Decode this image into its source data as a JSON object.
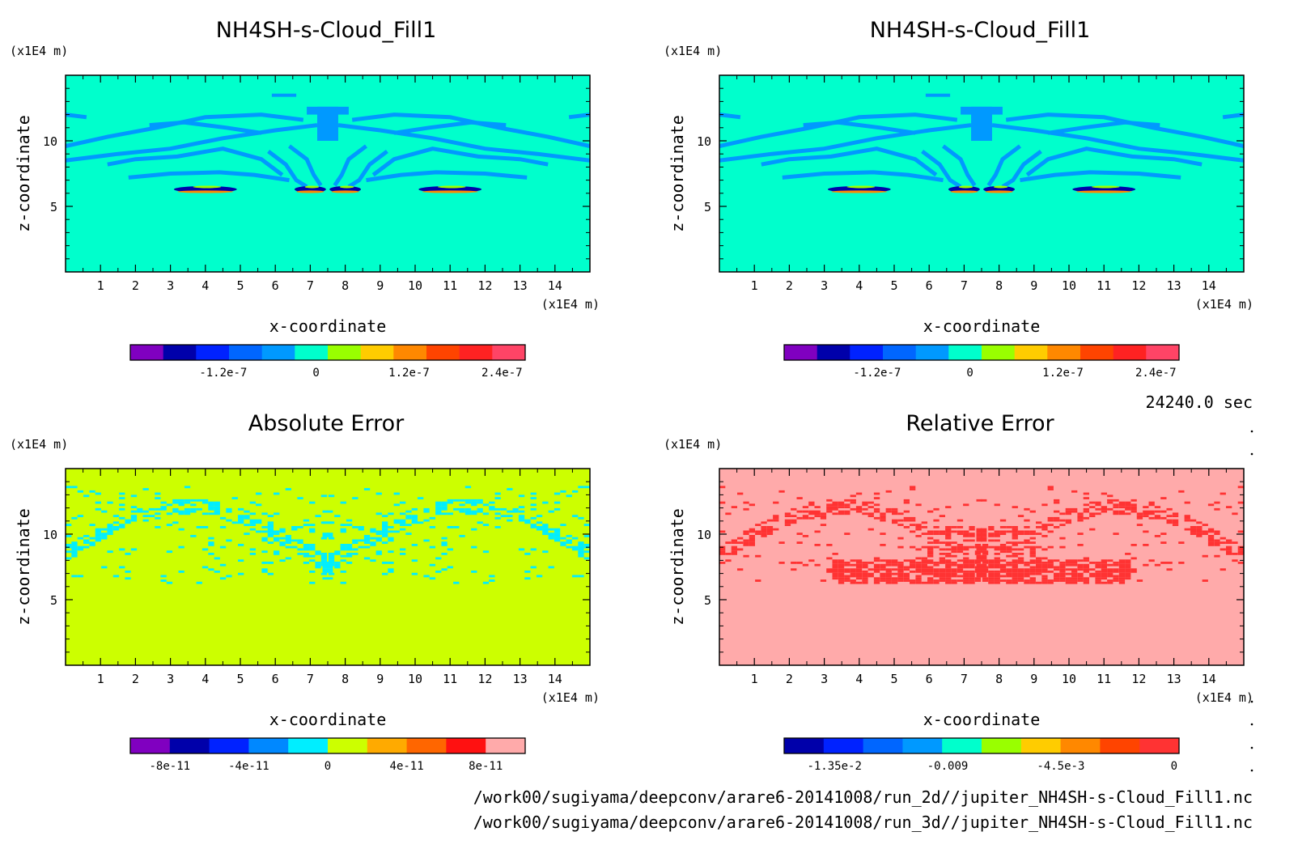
{
  "time_label": "24240.0 sec",
  "file_paths": [
    "/work00/sugiyama/deepconv/arare6-20141008/run_2d//jupiter_NH4SH-s-Cloud_Fill1.nc",
    "/work00/sugiyama/deepconv/arare6-20141008/run_3d//jupiter_NH4SH-s-Cloud_Fill1.nc"
  ],
  "chart_data": [
    {
      "type": "heatmap",
      "title": "NH4SH-s-Cloud_Fill1",
      "xlabel": "x-coordinate",
      "ylabel": "z-coordinate",
      "x_unit": "(x1E4 m)",
      "y_unit": "(x1E4 m)",
      "xlim": [
        0,
        15
      ],
      "ylim": [
        0,
        15
      ],
      "x_ticks": [
        1,
        2,
        3,
        4,
        5,
        6,
        7,
        8,
        9,
        10,
        11,
        12,
        13,
        14
      ],
      "y_ticks": [
        5,
        10
      ],
      "background_color": "#00ffcc",
      "pattern_color": "#0099ff",
      "colorbar": {
        "colors": [
          "#8000c0",
          "#0000aa",
          "#0022ff",
          "#0066ff",
          "#0099ff",
          "#00ffcc",
          "#99ff00",
          "#ffcc00",
          "#ff8800",
          "#ff4400",
          "#ff2222",
          "#ff4466"
        ],
        "labels": [
          "-1.2e-7",
          "0",
          "1.2e-7",
          "2.4e-7"
        ],
        "label_positions": [
          -1.2e-07,
          0,
          1.2e-07,
          2.4e-07
        ],
        "range": [
          -2.4e-07,
          2.7e-07
        ]
      }
    },
    {
      "type": "heatmap",
      "title": "NH4SH-s-Cloud_Fill1",
      "xlabel": "x-coordinate",
      "ylabel": "z-coordinate",
      "x_unit": "(x1E4 m)",
      "y_unit": "(x1E4 m)",
      "xlim": [
        0,
        15
      ],
      "ylim": [
        0,
        15
      ],
      "x_ticks": [
        1,
        2,
        3,
        4,
        5,
        6,
        7,
        8,
        9,
        10,
        11,
        12,
        13,
        14
      ],
      "y_ticks": [
        5,
        10
      ],
      "background_color": "#00ffcc",
      "pattern_color": "#0099ff",
      "colorbar": {
        "colors": [
          "#8000c0",
          "#0000aa",
          "#0022ff",
          "#0066ff",
          "#0099ff",
          "#00ffcc",
          "#99ff00",
          "#ffcc00",
          "#ff8800",
          "#ff4400",
          "#ff2222",
          "#ff4466"
        ],
        "labels": [
          "-1.2e-7",
          "0",
          "1.2e-7",
          "2.4e-7"
        ],
        "label_positions": [
          -1.2e-07,
          0,
          1.2e-07,
          2.4e-07
        ],
        "range": [
          -2.4e-07,
          2.7e-07
        ]
      }
    },
    {
      "type": "heatmap",
      "title": "Absolute Error",
      "xlabel": "x-coordinate",
      "ylabel": "z-coordinate",
      "x_unit": "(x1E4 m)",
      "y_unit": "(x1E4 m)",
      "xlim": [
        0,
        15
      ],
      "ylim": [
        0,
        15
      ],
      "x_ticks": [
        1,
        2,
        3,
        4,
        5,
        6,
        7,
        8,
        9,
        10,
        11,
        12,
        13,
        14
      ],
      "y_ticks": [
        5,
        10
      ],
      "background_color": "#ccff00",
      "pattern_color": "#00eeff",
      "colorbar": {
        "colors": [
          "#8000c0",
          "#0000aa",
          "#0022ff",
          "#0088ff",
          "#00eeff",
          "#ccff00",
          "#ffaa00",
          "#ff6600",
          "#ff1111",
          "#ffaaaa"
        ],
        "labels": [
          "-8e-11",
          "-4e-11",
          "0",
          "4e-11",
          "8e-11"
        ],
        "label_positions": [
          -8e-11,
          -4e-11,
          0,
          4e-11,
          8e-11
        ],
        "range": [
          -1e-10,
          1e-10
        ]
      }
    },
    {
      "type": "heatmap",
      "title": "Relative Error",
      "xlabel": "x-coordinate",
      "ylabel": "z-coordinate",
      "x_unit": "(x1E4 m)",
      "y_unit": "(x1E4 m)",
      "xlim": [
        0,
        15
      ],
      "ylim": [
        0,
        15
      ],
      "x_ticks": [
        1,
        2,
        3,
        4,
        5,
        6,
        7,
        8,
        9,
        10,
        11,
        12,
        13,
        14
      ],
      "y_ticks": [
        5,
        10
      ],
      "background_color": "#ffaaaa",
      "pattern_color": "#ff3333",
      "colorbar": {
        "colors": [
          "#0000aa",
          "#0022ff",
          "#0066ff",
          "#0099ff",
          "#00ffcc",
          "#99ff00",
          "#ffcc00",
          "#ff8800",
          "#ff4400",
          "#ff3333"
        ],
        "labels": [
          "-1.35e-2",
          "-0.009",
          "-4.5e-3",
          "0"
        ],
        "label_positions": [
          -0.0135,
          -0.009,
          -0.0045,
          0
        ],
        "range": [
          -0.0155,
          0.0002
        ]
      }
    }
  ]
}
